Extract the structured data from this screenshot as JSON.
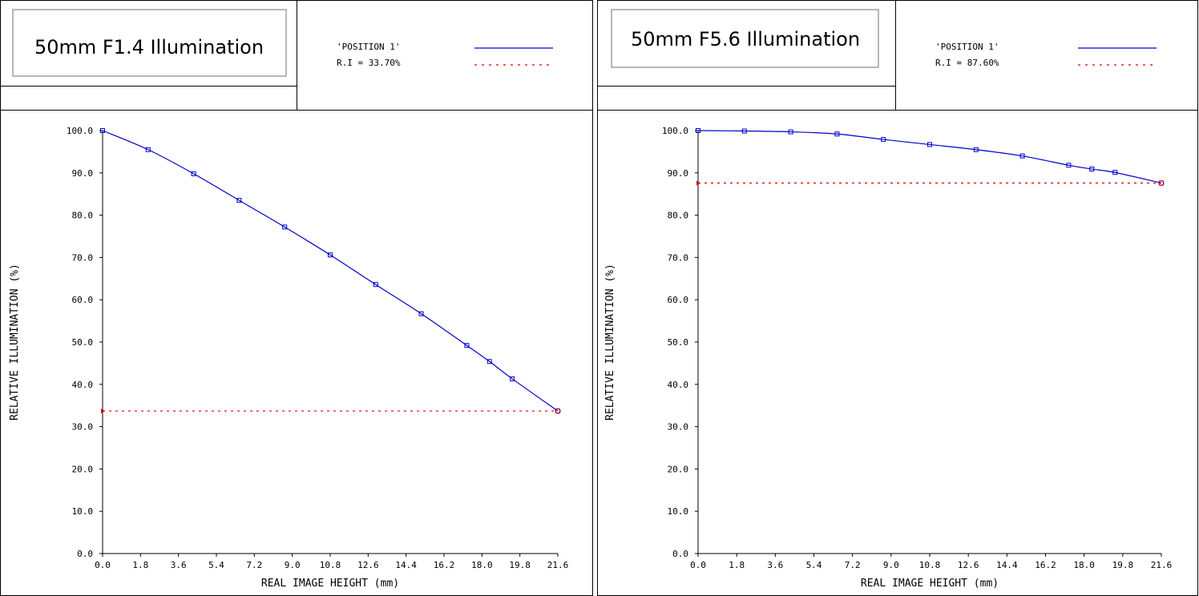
{
  "colors": {
    "curve": "#0000cc",
    "reference": "#dd0000",
    "frame": "#000000",
    "title_box_border": "#a0a0a0"
  },
  "chart_data": [
    {
      "type": "line",
      "title": "50mm F1.4 Illumination",
      "legend": {
        "series_name": "'POSITION 1'",
        "ri_text": "R.I = 33.70%",
        "placement": "top-right"
      },
      "xlabel": "REAL IMAGE HEIGHT (mm)",
      "ylabel": "RELATIVE ILLUMINATION (%)",
      "xlim": [
        0,
        21.6
      ],
      "ylim": [
        0,
        100
      ],
      "x_ticks": [
        "0.0",
        "1.8",
        "3.6",
        "5.4",
        "7.2",
        "9.0",
        "10.8",
        "12.6",
        "14.4",
        "16.2",
        "18.0",
        "19.8",
        "21.6"
      ],
      "y_ticks": [
        "0.0",
        "10.0",
        "20.0",
        "30.0",
        "40.0",
        "50.0",
        "60.0",
        "70.0",
        "80.0",
        "90.0",
        "100.0"
      ],
      "grid": false,
      "series": [
        {
          "name": "'POSITION 1'",
          "x": [
            0,
            2.16,
            4.32,
            6.48,
            8.64,
            10.8,
            12.96,
            15.12,
            17.28,
            18.36,
            19.44,
            21.6
          ],
          "y": [
            100.0,
            95.5,
            89.8,
            83.5,
            77.2,
            70.6,
            63.6,
            56.7,
            49.2,
            45.4,
            41.3,
            33.7
          ]
        }
      ],
      "reference": {
        "value": 33.7,
        "xlim": [
          0,
          21.6
        ]
      }
    },
    {
      "type": "line",
      "title": "50mm F5.6 Illumination",
      "legend": {
        "series_name": "'POSITION 1'",
        "ri_text": "R.I = 87.60%",
        "placement": "top-right"
      },
      "xlabel": "REAL IMAGE HEIGHT (mm)",
      "ylabel": "RELATIVE ILLUMINATION (%)",
      "xlim": [
        0,
        21.6
      ],
      "ylim": [
        0,
        100
      ],
      "x_ticks": [
        "0.0",
        "1.8",
        "3.6",
        "5.4",
        "7.2",
        "9.0",
        "10.8",
        "12.6",
        "14.4",
        "16.2",
        "18.0",
        "19.8",
        "21.6"
      ],
      "y_ticks": [
        "0.0",
        "10.0",
        "20.0",
        "30.0",
        "40.0",
        "50.0",
        "60.0",
        "70.0",
        "80.0",
        "90.0",
        "100.0"
      ],
      "grid": false,
      "series": [
        {
          "name": "'POSITION 1'",
          "x": [
            0,
            2.16,
            4.32,
            6.48,
            8.64,
            10.8,
            12.96,
            15.12,
            17.28,
            18.36,
            19.44,
            21.6
          ],
          "y": [
            100.0,
            99.9,
            99.7,
            99.2,
            97.9,
            96.7,
            95.5,
            94.0,
            91.8,
            90.9,
            90.1,
            87.6
          ]
        }
      ],
      "reference": {
        "value": 87.6,
        "xlim": [
          0,
          21.6
        ]
      }
    }
  ]
}
